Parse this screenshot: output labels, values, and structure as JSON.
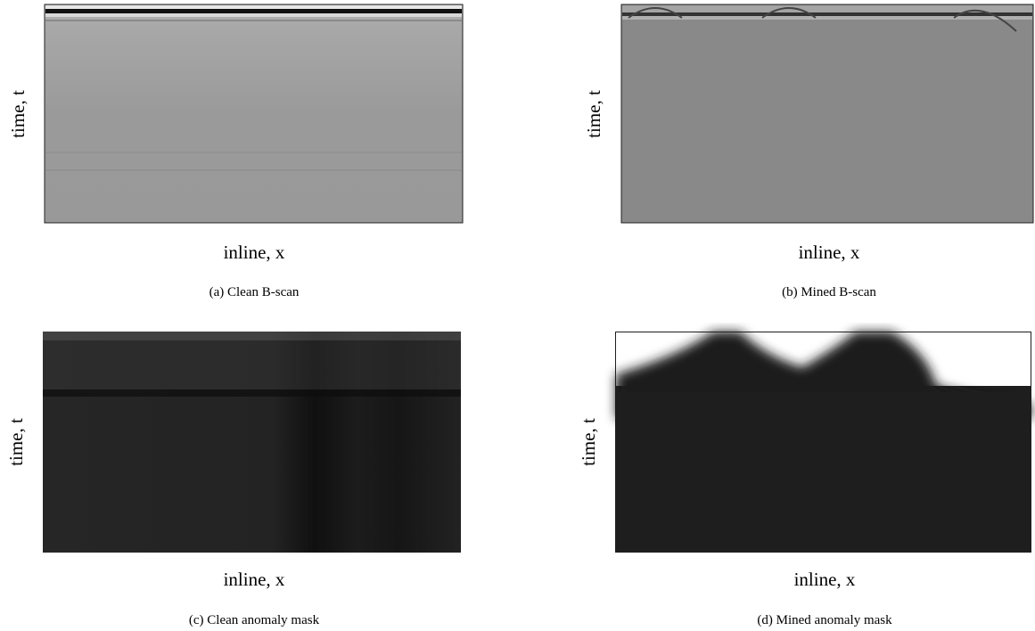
{
  "panels": [
    {
      "y_label": "time, t",
      "x_label": "inline, x",
      "caption": "(a) Clean B-scan"
    },
    {
      "y_label": "time, t",
      "x_label": "inline, x",
      "caption": "(b) Mined B-scan"
    },
    {
      "y_label": "time, t",
      "x_label": "inline, x",
      "caption": "(c) Clean anomaly mask"
    },
    {
      "y_label": "time, t",
      "x_label": "inline, x",
      "caption": "(d) Mined anomaly mask"
    }
  ]
}
